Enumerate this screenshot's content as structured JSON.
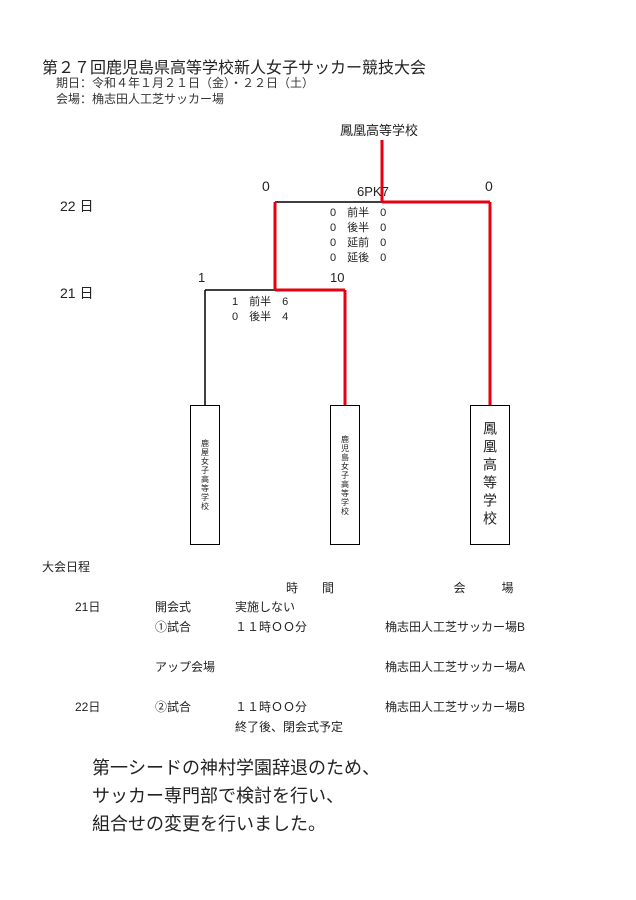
{
  "header": {
    "title": "第２７回鹿児島県高等学校新人女子サッカー競技大会",
    "dates_line": "期日：令和４年１月２１日（金）・２２日（土）",
    "venue_line": "会場：桷志田人工芝サッカー場"
  },
  "bracket": {
    "champion": "鳳凰高等学校",
    "day22_label": "22 日",
    "day21_label": "21 日",
    "final": {
      "score_left": "0",
      "score_right": "0",
      "pk": "6PK7",
      "periods": [
        {
          "l": "0",
          "label": "前半",
          "r": "0"
        },
        {
          "l": "0",
          "label": "後半",
          "r": "0"
        },
        {
          "l": "0",
          "label": "延前",
          "r": "0"
        },
        {
          "l": "0",
          "label": "延後",
          "r": "0"
        }
      ]
    },
    "semi": {
      "score_left": "1",
      "score_right": "10",
      "periods": [
        {
          "l": "1",
          "label": "前半",
          "r": "6"
        },
        {
          "l": "0",
          "label": "後半",
          "r": "4"
        }
      ]
    },
    "teams": {
      "left": "鹿屋女子高等学校",
      "center": "鹿児島女子高等学校",
      "right": "鳳凰高等学校"
    },
    "style": {
      "winner_color": "#e60012",
      "line_color": "#000000",
      "background": "#ffffff",
      "line_width_normal": 1.5,
      "line_width_winner": 3
    }
  },
  "schedule": {
    "heading": "大会日程",
    "col_time": "時　　間",
    "col_venue": "会　　　場",
    "rows": [
      {
        "date": "21日",
        "evt": "開会式",
        "time": "実施しない",
        "venue": ""
      },
      {
        "date": "",
        "evt": "①試合",
        "time": "１１時ＯＯ分",
        "venue": "桷志田人工芝サッカー場B"
      },
      {
        "date": "",
        "evt": "",
        "time": "",
        "venue": ""
      },
      {
        "date": "",
        "evt": "アップ会場",
        "time": "",
        "venue": "桷志田人工芝サッカー場A"
      },
      {
        "date": "",
        "evt": "",
        "time": "",
        "venue": ""
      },
      {
        "date": "22日",
        "evt": "②試合",
        "time": "１１時ＯＯ分",
        "venue": "桷志田人工芝サッカー場B"
      },
      {
        "date": "",
        "evt": "",
        "time": "終了後、閉会式予定",
        "venue": ""
      }
    ]
  },
  "notice": {
    "line1": "第一シードの神村学園辞退のため、",
    "line2": "サッカー専門部で検討を行い、",
    "line3": "組合せの変更を行いました。"
  }
}
